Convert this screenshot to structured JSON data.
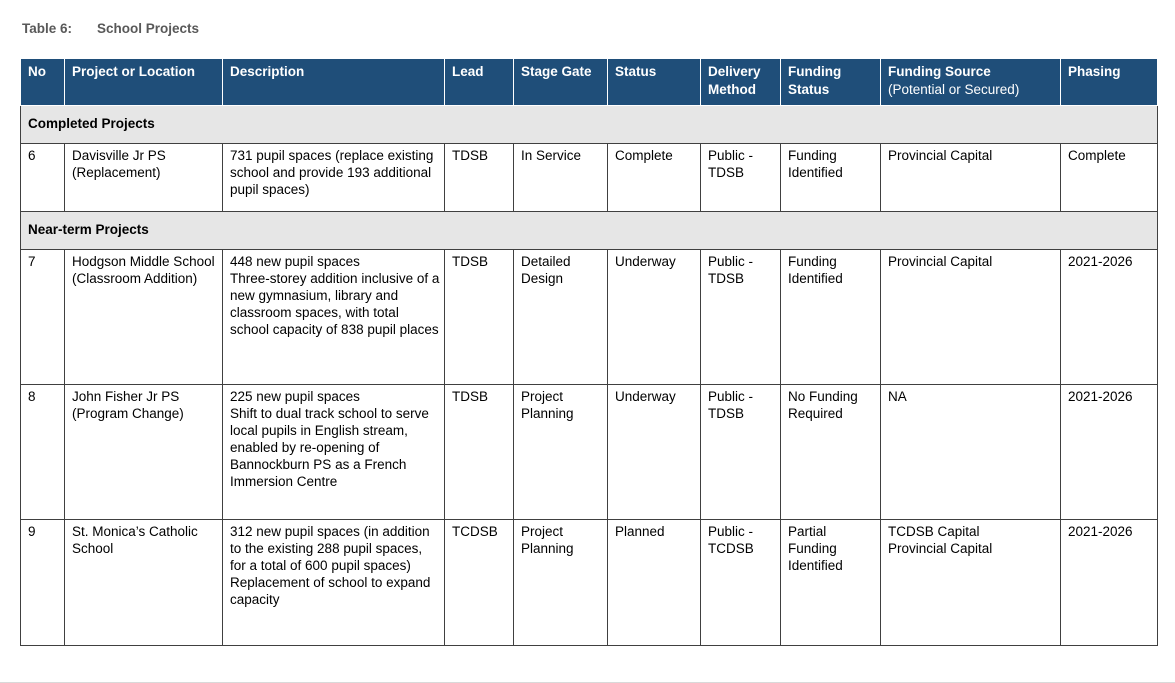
{
  "title": {
    "label": "Table 6:",
    "text": "School Projects",
    "color": "#595959"
  },
  "table": {
    "header_bg": "#1f4e79",
    "header_text_color": "#ffffff",
    "section_bg": "#e6e6e6",
    "border_color": "#404040",
    "columns": [
      {
        "key": "no",
        "label": "No"
      },
      {
        "key": "project",
        "label": "Project or Location"
      },
      {
        "key": "description",
        "label": "Description"
      },
      {
        "key": "lead",
        "label": "Lead"
      },
      {
        "key": "stage_gate",
        "label": "Stage Gate"
      },
      {
        "key": "status",
        "label": "Status"
      },
      {
        "key": "delivery",
        "label": "Delivery Method"
      },
      {
        "key": "funding_status",
        "label": "Funding Status"
      },
      {
        "key": "funding_source",
        "label": "Funding Source",
        "sublabel": "(Potential or Secured)"
      },
      {
        "key": "phasing",
        "label": "Phasing"
      }
    ],
    "sections": [
      {
        "name": "Completed Projects",
        "rows": [
          {
            "no": "6",
            "project": "Davisville Jr PS (Replacement)",
            "description": "731 pupil spaces (replace existing school and provide 193 additional pupil spaces)",
            "lead": "TDSB",
            "stage_gate": "In Service",
            "status": "Complete",
            "delivery": "Public - TDSB",
            "funding_status": "Funding Identified",
            "funding_source": "Provincial Capital",
            "phasing": "Complete"
          }
        ]
      },
      {
        "name": "Near-term Projects",
        "rows": [
          {
            "no": "7",
            "project": "Hodgson Middle School (Classroom Addition)",
            "description": "448 new pupil spaces\nThree-storey addition inclusive of a new gymnasium, library and classroom spaces, with total school capacity of 838 pupil places",
            "lead": "TDSB",
            "stage_gate": "Detailed Design",
            "status": "Underway",
            "delivery": "Public - TDSB",
            "funding_status": "Funding Identified",
            "funding_source": "Provincial Capital",
            "phasing": "2021-2026"
          },
          {
            "no": "8",
            "project": "John Fisher Jr PS (Program Change)",
            "description": "225 new pupil spaces\nShift to dual track school to serve local pupils in English stream, enabled by re-opening of Bannockburn PS as a French Immersion Centre",
            "lead": "TDSB",
            "stage_gate": "Project Planning",
            "status": "Underway",
            "delivery": "Public - TDSB",
            "funding_status": "No Funding Required",
            "funding_source": "NA",
            "phasing": "2021-2026"
          },
          {
            "no": "9",
            "project": "St. Monica’s Catholic School",
            "description": "312 new pupil spaces (in addition to the existing 288 pupil spaces, for a total of 600 pupil spaces)\nReplacement of school to expand capacity",
            "lead": "TCDSB",
            "stage_gate": "Project Planning",
            "status": "Planned",
            "delivery": "Public - TCDSB",
            "funding_status": "Partial Funding Identified",
            "funding_source": "TCDSB Capital\nProvincial Capital",
            "phasing": "2021-2026"
          }
        ]
      }
    ]
  }
}
